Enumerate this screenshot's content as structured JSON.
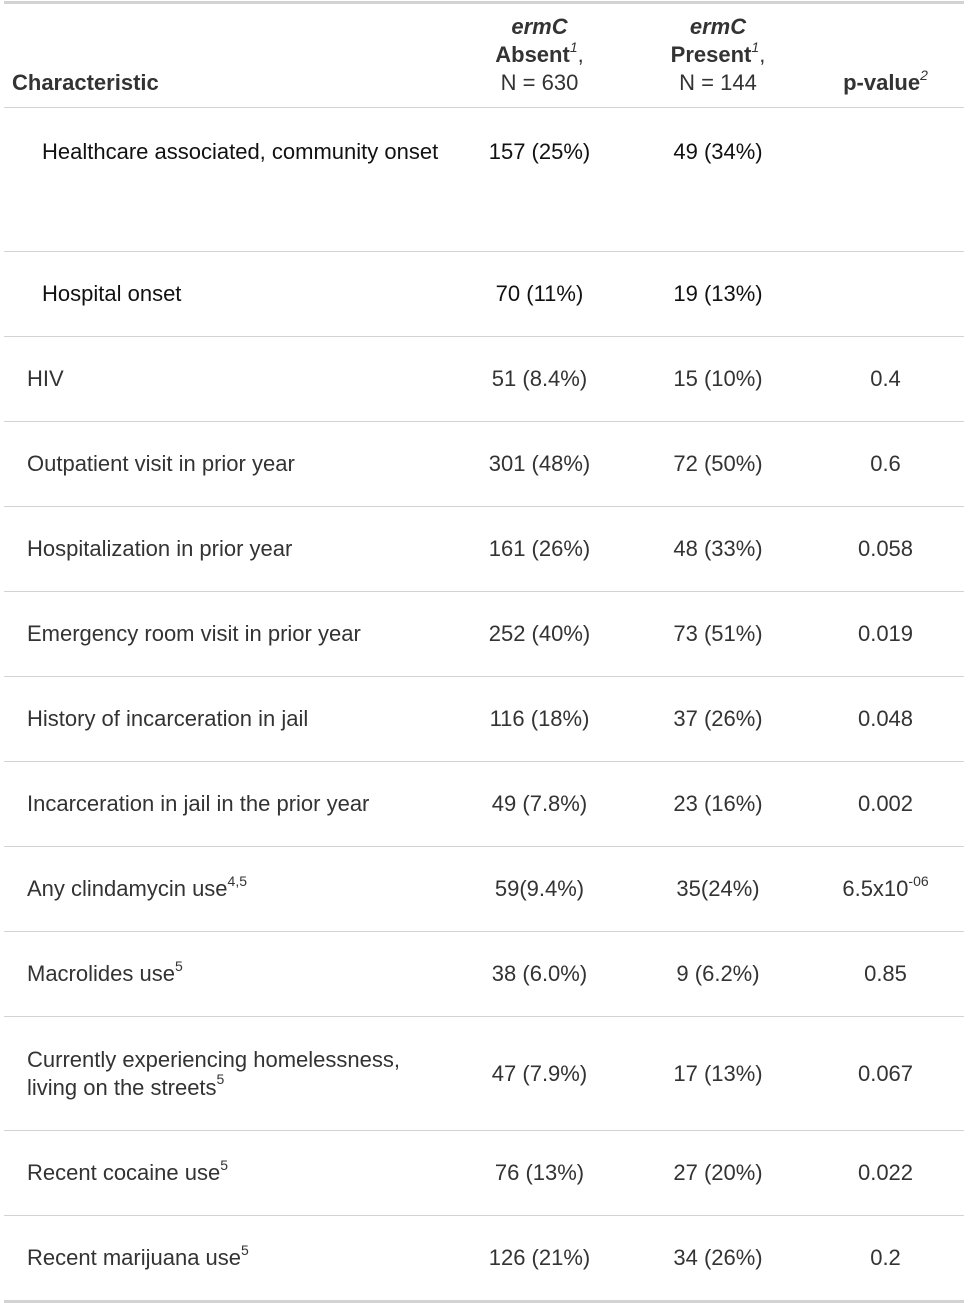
{
  "headers": {
    "characteristic": "Characteristic",
    "absent": {
      "gene": "ermC",
      "label": "Absent",
      "sup": "1",
      "n": "N = 630"
    },
    "present": {
      "gene": "ermC",
      "label": "Present",
      "sup": "1",
      "n": "N = 144"
    },
    "pvalue": {
      "label": "p-value",
      "sup": "2"
    }
  },
  "rows": [
    {
      "label": "Healthcare associated, community onset",
      "label_sup": "",
      "absent": "157 (25%)",
      "present": "49 (34%)",
      "pvalue": "",
      "pvalue_exp": ""
    },
    {
      "label": "Hospital onset",
      "label_sup": "",
      "absent": "70 (11%)",
      "present": "19 (13%)",
      "pvalue": "",
      "pvalue_exp": ""
    },
    {
      "label": "HIV",
      "label_sup": "",
      "absent": "51 (8.4%)",
      "present": "15 (10%)",
      "pvalue": "0.4",
      "pvalue_exp": ""
    },
    {
      "label": "Outpatient visit in prior year",
      "label_sup": "",
      "absent": "301 (48%)",
      "present": "72 (50%)",
      "pvalue": "0.6",
      "pvalue_exp": ""
    },
    {
      "label": "Hospitalization in prior year",
      "label_sup": "",
      "absent": "161 (26%)",
      "present": "48 (33%)",
      "pvalue": "0.058",
      "pvalue_exp": ""
    },
    {
      "label": "Emergency room visit in prior year",
      "label_sup": "",
      "absent": "252 (40%)",
      "present": "73 (51%)",
      "pvalue": "0.019",
      "pvalue_exp": ""
    },
    {
      "label": "History of incarceration in jail",
      "label_sup": "",
      "absent": "116 (18%)",
      "present": "37 (26%)",
      "pvalue": "0.048",
      "pvalue_exp": ""
    },
    {
      "label": "Incarceration in jail in the prior year",
      "label_sup": "",
      "absent": "49 (7.8%)",
      "present": "23 (16%)",
      "pvalue": "0.002",
      "pvalue_exp": ""
    },
    {
      "label": "Any clindamycin use",
      "label_sup": "4,5",
      "absent": "59(9.4%)",
      "present": "35(24%)",
      "pvalue": "6.5x10",
      "pvalue_exp": "-06"
    },
    {
      "label": "Macrolides use",
      "label_sup": "5",
      "absent": "38 (6.0%)",
      "present": "9 (6.2%)",
      "pvalue": "0.85",
      "pvalue_exp": ""
    },
    {
      "label": "Currently experiencing homelessness, living on the streets",
      "label_sup": "5",
      "absent": "47 (7.9%)",
      "present": "17 (13%)",
      "pvalue": "0.067",
      "pvalue_exp": ""
    },
    {
      "label": "Recent cocaine use",
      "label_sup": "5",
      "absent": "76 (13%)",
      "present": "27 (20%)",
      "pvalue": "0.022",
      "pvalue_exp": ""
    },
    {
      "label": "Recent marijuana use",
      "label_sup": "5",
      "absent": "126 (21%)",
      "present": "34 (26%)",
      "pvalue": "0.2",
      "pvalue_exp": ""
    }
  ]
}
